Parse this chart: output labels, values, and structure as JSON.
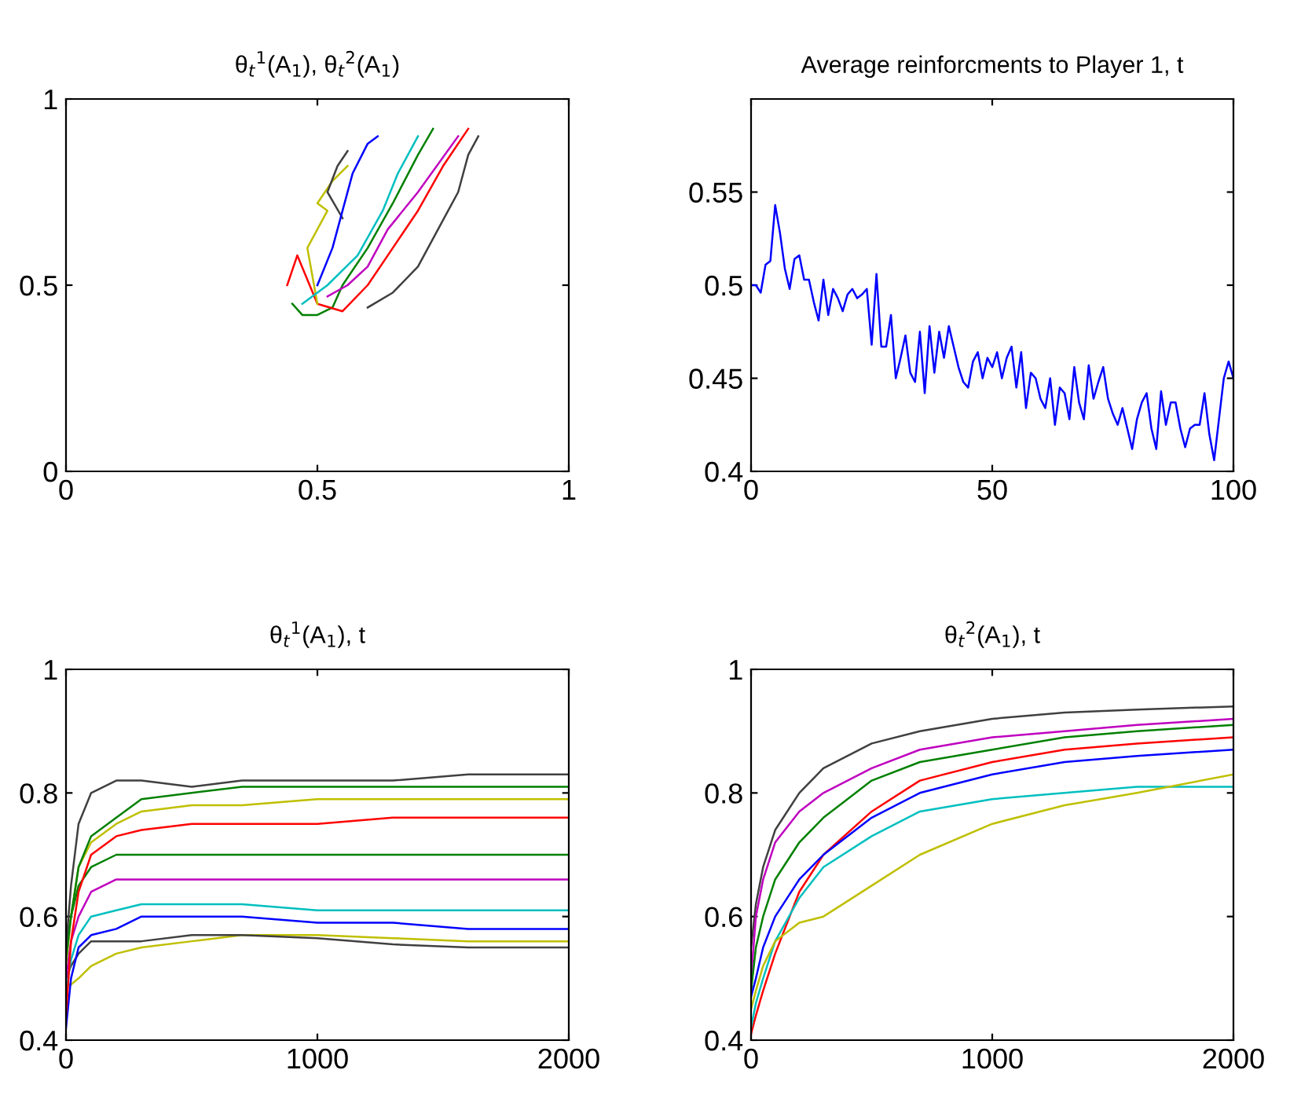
{
  "chart_data": [
    {
      "type": "line",
      "title": "θ$_{t}$$^{1}$(A$_{1}$), θ$_{t}$$^{2}$(A$_{1}$)",
      "xlim": [
        0,
        1
      ],
      "ylim": [
        0,
        1
      ],
      "xticks": [
        0,
        0.5,
        1
      ],
      "yticks": [
        0,
        0.5,
        1
      ],
      "series": [
        {
          "color": "#008000",
          "x": [
            0.45,
            0.47,
            0.5,
            0.53,
            0.55,
            0.6,
            0.65,
            0.7,
            0.73
          ],
          "values": [
            0.45,
            0.42,
            0.42,
            0.44,
            0.5,
            0.6,
            0.72,
            0.85,
            0.92
          ]
        },
        {
          "color": "#ff0000",
          "x": [
            0.44,
            0.46,
            0.5,
            0.55,
            0.6,
            0.65,
            0.7,
            0.75,
            0.8
          ],
          "values": [
            0.5,
            0.58,
            0.45,
            0.43,
            0.5,
            0.6,
            0.7,
            0.82,
            0.92
          ]
        },
        {
          "color": "#bfbf00",
          "x": [
            0.5,
            0.48,
            0.52,
            0.5,
            0.53,
            0.56
          ],
          "values": [
            0.45,
            0.6,
            0.7,
            0.72,
            0.78,
            0.82
          ]
        },
        {
          "color": "#404040",
          "x": [
            0.55,
            0.52,
            0.54,
            0.56
          ],
          "values": [
            0.68,
            0.75,
            0.82,
            0.86
          ]
        },
        {
          "color": "#0000ff",
          "x": [
            0.5,
            0.53,
            0.55,
            0.57,
            0.6,
            0.62
          ],
          "values": [
            0.5,
            0.6,
            0.7,
            0.8,
            0.88,
            0.9
          ]
        },
        {
          "color": "#00bfbf",
          "x": [
            0.47,
            0.52,
            0.58,
            0.63,
            0.66,
            0.7
          ],
          "values": [
            0.45,
            0.5,
            0.58,
            0.7,
            0.8,
            0.9
          ]
        },
        {
          "color": "#bf00bf",
          "x": [
            0.52,
            0.56,
            0.6,
            0.64,
            0.7,
            0.78
          ],
          "values": [
            0.47,
            0.5,
            0.55,
            0.65,
            0.75,
            0.9
          ]
        },
        {
          "color": "#404040",
          "x": [
            0.6,
            0.65,
            0.7,
            0.74,
            0.78,
            0.8,
            0.82
          ],
          "values": [
            0.44,
            0.48,
            0.55,
            0.65,
            0.75,
            0.85,
            0.9
          ]
        }
      ]
    },
    {
      "type": "line",
      "title": "Average reinforcments to Player 1, t",
      "xlim": [
        0,
        100
      ],
      "ylim": [
        0.4,
        0.6
      ],
      "xticks": [
        0,
        50,
        100
      ],
      "yticks": [
        0.4,
        0.45,
        0.5,
        0.55
      ],
      "x": [
        0,
        1,
        2,
        3,
        4,
        5,
        6,
        7,
        8,
        9,
        10,
        11,
        12,
        13,
        14,
        15,
        16,
        17,
        18,
        19,
        20,
        21,
        22,
        23,
        24,
        25,
        26,
        27,
        28,
        29,
        30,
        31,
        32,
        33,
        34,
        35,
        36,
        37,
        38,
        39,
        40,
        41,
        42,
        43,
        44,
        45,
        46,
        47,
        48,
        49,
        50,
        51,
        52,
        53,
        54,
        55,
        56,
        57,
        58,
        59,
        60,
        61,
        62,
        63,
        64,
        65,
        66,
        67,
        68,
        69,
        70,
        71,
        72,
        73,
        74,
        75,
        76,
        77,
        78,
        79,
        80,
        81,
        82,
        83,
        84,
        85,
        86,
        87,
        88,
        89,
        90,
        91,
        92,
        93,
        94,
        95,
        96,
        97,
        98,
        99,
        100
      ],
      "series": [
        {
          "color": "#0000ff",
          "values": [
            0.5,
            0.5,
            0.496,
            0.511,
            0.513,
            0.543,
            0.528,
            0.509,
            0.498,
            0.514,
            0.516,
            0.503,
            0.503,
            0.491,
            0.481,
            0.503,
            0.484,
            0.498,
            0.493,
            0.486,
            0.495,
            0.498,
            0.493,
            0.495,
            0.498,
            0.468,
            0.506,
            0.467,
            0.467,
            0.484,
            0.45,
            0.461,
            0.473,
            0.453,
            0.448,
            0.475,
            0.442,
            0.478,
            0.453,
            0.475,
            0.461,
            0.478,
            0.467,
            0.456,
            0.448,
            0.445,
            0.459,
            0.464,
            0.45,
            0.461,
            0.456,
            0.464,
            0.45,
            0.461,
            0.467,
            0.445,
            0.464,
            0.434,
            0.453,
            0.45,
            0.439,
            0.434,
            0.45,
            0.425,
            0.445,
            0.442,
            0.428,
            0.456,
            0.437,
            0.428,
            0.457,
            0.439,
            0.448,
            0.456,
            0.439,
            0.431,
            0.425,
            0.434,
            0.423,
            0.412,
            0.428,
            0.437,
            0.442,
            0.423,
            0.412,
            0.443,
            0.425,
            0.437,
            0.437,
            0.423,
            0.413,
            0.423,
            0.425,
            0.425,
            0.442,
            0.42,
            0.406,
            0.428,
            0.45,
            0.459,
            0.45
          ]
        }
      ]
    },
    {
      "type": "line",
      "title": "θ$_{t}$$^{1}$(A$_{1}$), t",
      "xlim": [
        0,
        2000
      ],
      "ylim": [
        0.4,
        1
      ],
      "xticks": [
        0,
        1000,
        2000
      ],
      "yticks": [
        0.4,
        0.6,
        0.8,
        1
      ],
      "x": [
        0,
        20,
        50,
        100,
        200,
        300,
        500,
        700,
        1000,
        1300,
        1600,
        2000
      ],
      "series": [
        {
          "color": "#bfbf00",
          "values": [
            0.49,
            0.49,
            0.5,
            0.52,
            0.54,
            0.55,
            0.56,
            0.57,
            0.57,
            0.565,
            0.56,
            0.56
          ]
        },
        {
          "color": "#404040",
          "values": [
            0.5,
            0.52,
            0.54,
            0.56,
            0.56,
            0.56,
            0.57,
            0.57,
            0.565,
            0.555,
            0.55,
            0.55
          ]
        },
        {
          "color": "#0000ff",
          "values": [
            0.42,
            0.5,
            0.55,
            0.57,
            0.58,
            0.6,
            0.6,
            0.6,
            0.59,
            0.59,
            0.58,
            0.58
          ]
        },
        {
          "color": "#00bfbf",
          "values": [
            0.48,
            0.53,
            0.57,
            0.6,
            0.61,
            0.62,
            0.62,
            0.62,
            0.61,
            0.61,
            0.61,
            0.61
          ]
        },
        {
          "color": "#bf00bf",
          "values": [
            0.5,
            0.56,
            0.6,
            0.64,
            0.66,
            0.66,
            0.66,
            0.66,
            0.66,
            0.66,
            0.66,
            0.66
          ]
        },
        {
          "color": "#008000",
          "values": [
            0.55,
            0.6,
            0.65,
            0.68,
            0.7,
            0.7,
            0.7,
            0.7,
            0.7,
            0.7,
            0.7,
            0.7
          ]
        },
        {
          "color": "#ff0000",
          "values": [
            0.44,
            0.56,
            0.64,
            0.7,
            0.73,
            0.74,
            0.75,
            0.75,
            0.75,
            0.76,
            0.76,
            0.76
          ]
        },
        {
          "color": "#bfbf00",
          "values": [
            0.52,
            0.6,
            0.68,
            0.72,
            0.75,
            0.77,
            0.78,
            0.78,
            0.79,
            0.79,
            0.79,
            0.79
          ]
        },
        {
          "color": "#008000",
          "values": [
            0.53,
            0.6,
            0.68,
            0.73,
            0.76,
            0.79,
            0.8,
            0.81,
            0.81,
            0.81,
            0.81,
            0.81
          ]
        },
        {
          "color": "#404040",
          "values": [
            0.55,
            0.65,
            0.75,
            0.8,
            0.82,
            0.82,
            0.81,
            0.82,
            0.82,
            0.82,
            0.83,
            0.83
          ]
        }
      ]
    },
    {
      "type": "line",
      "title": "θ$_{t}$$^{2}$(A$_{1}$), t",
      "xlim": [
        0,
        2000
      ],
      "ylim": [
        0.4,
        1
      ],
      "xticks": [
        0,
        1000,
        2000
      ],
      "yticks": [
        0.4,
        0.6,
        0.8,
        1
      ],
      "x": [
        0,
        20,
        50,
        100,
        200,
        300,
        500,
        700,
        1000,
        1300,
        1600,
        2000
      ],
      "series": [
        {
          "color": "#404040",
          "values": [
            0.55,
            0.62,
            0.68,
            0.74,
            0.8,
            0.84,
            0.88,
            0.9,
            0.92,
            0.93,
            0.935,
            0.94
          ]
        },
        {
          "color": "#bf00bf",
          "values": [
            0.5,
            0.6,
            0.66,
            0.72,
            0.77,
            0.8,
            0.84,
            0.87,
            0.89,
            0.9,
            0.91,
            0.92
          ]
        },
        {
          "color": "#008000",
          "values": [
            0.48,
            0.55,
            0.6,
            0.66,
            0.72,
            0.76,
            0.82,
            0.85,
            0.87,
            0.89,
            0.9,
            0.91
          ]
        },
        {
          "color": "#ff0000",
          "values": [
            0.41,
            0.44,
            0.48,
            0.54,
            0.64,
            0.7,
            0.77,
            0.82,
            0.85,
            0.87,
            0.88,
            0.89
          ]
        },
        {
          "color": "#0000ff",
          "values": [
            0.47,
            0.5,
            0.55,
            0.6,
            0.66,
            0.7,
            0.76,
            0.8,
            0.83,
            0.85,
            0.86,
            0.87
          ]
        },
        {
          "color": "#00bfbf",
          "values": [
            0.42,
            0.46,
            0.5,
            0.56,
            0.63,
            0.68,
            0.73,
            0.77,
            0.79,
            0.8,
            0.81,
            0.81
          ]
        },
        {
          "color": "#bfbf00",
          "values": [
            0.45,
            0.48,
            0.52,
            0.56,
            0.59,
            0.6,
            0.65,
            0.7,
            0.75,
            0.78,
            0.8,
            0.83
          ]
        }
      ]
    }
  ]
}
